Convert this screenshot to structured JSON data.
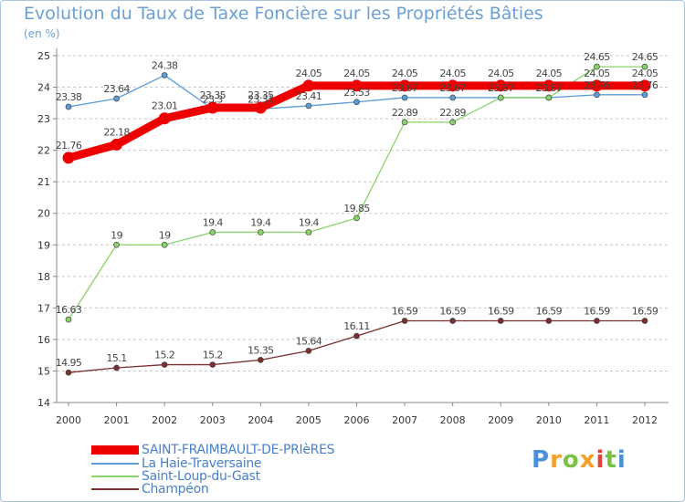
{
  "title": "Evolution du Taux de Taxe Foncière sur les Propriétés Bâties",
  "unit": "(en %)",
  "brand": "Proxiti",
  "chart_data": {
    "type": "line",
    "title": "Evolution du Taux de Taxe Foncière sur les Propriétés Bâties",
    "ylabel": "(en %)",
    "xlabel": "",
    "ylim": [
      14,
      25
    ],
    "yticks": [
      14,
      15,
      16,
      17,
      18,
      19,
      20,
      21,
      22,
      23,
      24,
      25
    ],
    "grid": "horizontal dashed",
    "categories": [
      "2000",
      "2001",
      "2002",
      "2003",
      "2004",
      "2005",
      "2006",
      "2007",
      "2008",
      "2009",
      "2010",
      "2011",
      "2012"
    ],
    "series": [
      {
        "name": "SAINT-FRAIMBAULT-DE-PRIèRES",
        "color": "#ee0000",
        "values": [
          21.76,
          22.18,
          23.01,
          23.35,
          23.35,
          24.05,
          24.05,
          24.05,
          24.05,
          24.05,
          24.05,
          24.05,
          24.05
        ],
        "labels": [
          "21.76",
          "22.18",
          "23.01",
          "23.35",
          "23.35",
          "24.05",
          "24.05",
          "24.05",
          "24.05",
          "24.05",
          "24.05",
          "24.05",
          "24.05"
        ]
      },
      {
        "name": "La Haie-Traversaine",
        "color": "#5a9bd8",
        "values": [
          23.38,
          23.64,
          24.38,
          23.31,
          23.31,
          23.41,
          23.53,
          23.67,
          23.67,
          23.67,
          23.67,
          23.76,
          23.76
        ],
        "labels": [
          "23.38",
          "23.64",
          "24.38",
          "23.3",
          "23.31",
          "23.41",
          "23.53",
          "23.67",
          "23.67",
          "23.67",
          "23.67",
          "23.76",
          "23.76"
        ]
      },
      {
        "name": "Saint-Loup-du-Gast",
        "color": "#88d46a",
        "values": [
          16.63,
          19,
          19,
          19.4,
          19.4,
          19.4,
          19.85,
          22.89,
          22.89,
          23.67,
          23.67,
          24.65,
          24.65
        ],
        "labels": [
          "16.63",
          "19",
          "19",
          "19.4",
          "19.4",
          "19.4",
          "19.85",
          "22.89",
          "22.89",
          "23.67",
          "23.67",
          "24.65",
          "24.65"
        ]
      },
      {
        "name": "Champéon",
        "color": "#7a2e2e",
        "values": [
          14.95,
          15.1,
          15.2,
          15.2,
          15.35,
          15.64,
          16.11,
          16.59,
          16.59,
          16.59,
          16.59,
          16.59,
          16.59
        ],
        "labels": [
          "14.95",
          "15.1",
          "15.2",
          "15.2",
          "15.35",
          "15.64",
          "16.11",
          "16.59",
          "16.59",
          "16.59",
          "16.59",
          "16.59",
          "16.59"
        ]
      }
    ]
  }
}
